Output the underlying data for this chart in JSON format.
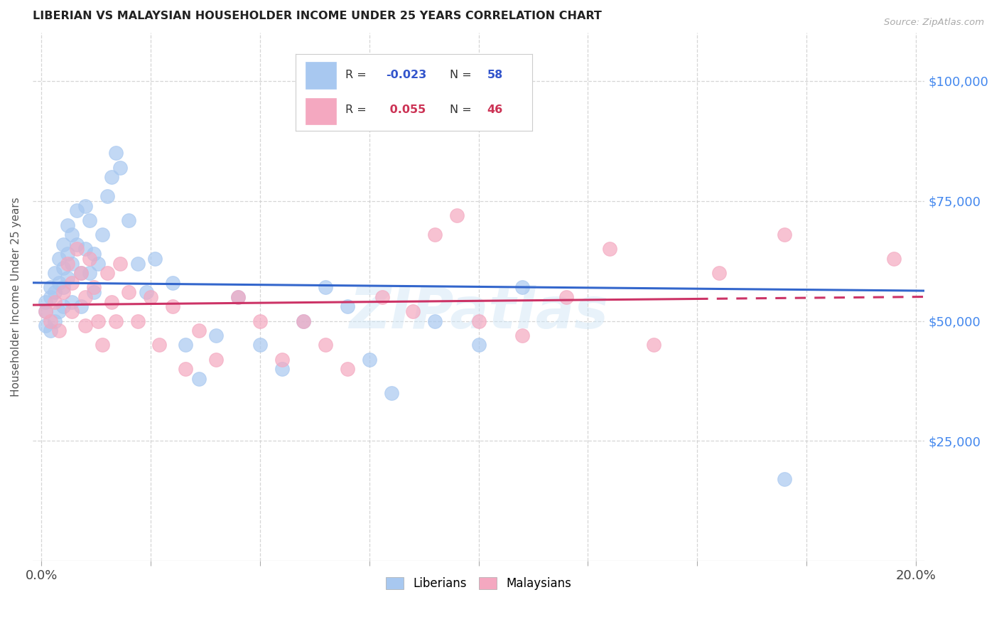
{
  "title": "LIBERIAN VS MALAYSIAN HOUSEHOLDER INCOME UNDER 25 YEARS CORRELATION CHART",
  "source": "Source: ZipAtlas.com",
  "ylabel_label": "Householder Income Under 25 years",
  "ylim": [
    0,
    110000
  ],
  "xlim": [
    -0.002,
    0.202
  ],
  "blue_R": -0.023,
  "blue_N": 58,
  "pink_R": 0.055,
  "pink_N": 46,
  "blue_color": "#a8c8f0",
  "pink_color": "#f4a8c0",
  "blue_line_color": "#3366cc",
  "pink_line_color": "#cc3366",
  "background_color": "#ffffff",
  "grid_color": "#cccccc",
  "title_color": "#222222",
  "axis_label_color": "#555555",
  "tick_label_color_right": "#4488ee",
  "ylabel_vals": [
    25000,
    50000,
    75000,
    100000
  ],
  "ylabel_ticks": [
    "$25,000",
    "$50,000",
    "$75,000",
    "$100,000"
  ],
  "xtick_vals": [
    0.0,
    0.025,
    0.05,
    0.075,
    0.1,
    0.125,
    0.15,
    0.175,
    0.2
  ],
  "liberian_x": [
    0.001,
    0.001,
    0.001,
    0.002,
    0.002,
    0.002,
    0.003,
    0.003,
    0.003,
    0.004,
    0.004,
    0.004,
    0.005,
    0.005,
    0.005,
    0.005,
    0.006,
    0.006,
    0.006,
    0.007,
    0.007,
    0.007,
    0.008,
    0.008,
    0.009,
    0.009,
    0.01,
    0.01,
    0.011,
    0.011,
    0.012,
    0.012,
    0.013,
    0.014,
    0.015,
    0.016,
    0.017,
    0.018,
    0.02,
    0.022,
    0.024,
    0.026,
    0.03,
    0.033,
    0.036,
    0.04,
    0.045,
    0.05,
    0.055,
    0.06,
    0.065,
    0.07,
    0.075,
    0.08,
    0.09,
    0.1,
    0.11,
    0.17
  ],
  "liberian_y": [
    54000,
    52000,
    49000,
    57000,
    55000,
    48000,
    60000,
    56000,
    50000,
    63000,
    58000,
    52000,
    66000,
    61000,
    57000,
    53000,
    70000,
    64000,
    59000,
    68000,
    62000,
    54000,
    73000,
    66000,
    60000,
    53000,
    74000,
    65000,
    71000,
    60000,
    64000,
    56000,
    62000,
    68000,
    76000,
    80000,
    85000,
    82000,
    71000,
    62000,
    56000,
    63000,
    58000,
    45000,
    38000,
    47000,
    55000,
    45000,
    40000,
    50000,
    57000,
    53000,
    42000,
    35000,
    50000,
    45000,
    57000,
    17000
  ],
  "malaysian_x": [
    0.001,
    0.002,
    0.003,
    0.004,
    0.005,
    0.006,
    0.007,
    0.007,
    0.008,
    0.009,
    0.01,
    0.01,
    0.011,
    0.012,
    0.013,
    0.014,
    0.015,
    0.016,
    0.017,
    0.018,
    0.02,
    0.022,
    0.025,
    0.027,
    0.03,
    0.033,
    0.036,
    0.04,
    0.045,
    0.05,
    0.055,
    0.06,
    0.065,
    0.07,
    0.078,
    0.085,
    0.09,
    0.095,
    0.1,
    0.11,
    0.12,
    0.13,
    0.14,
    0.155,
    0.17,
    0.195
  ],
  "malaysian_y": [
    52000,
    50000,
    54000,
    48000,
    56000,
    62000,
    58000,
    52000,
    65000,
    60000,
    55000,
    49000,
    63000,
    57000,
    50000,
    45000,
    60000,
    54000,
    50000,
    62000,
    56000,
    50000,
    55000,
    45000,
    53000,
    40000,
    48000,
    42000,
    55000,
    50000,
    42000,
    50000,
    45000,
    40000,
    55000,
    52000,
    68000,
    72000,
    50000,
    47000,
    55000,
    65000,
    45000,
    60000,
    68000,
    63000
  ]
}
